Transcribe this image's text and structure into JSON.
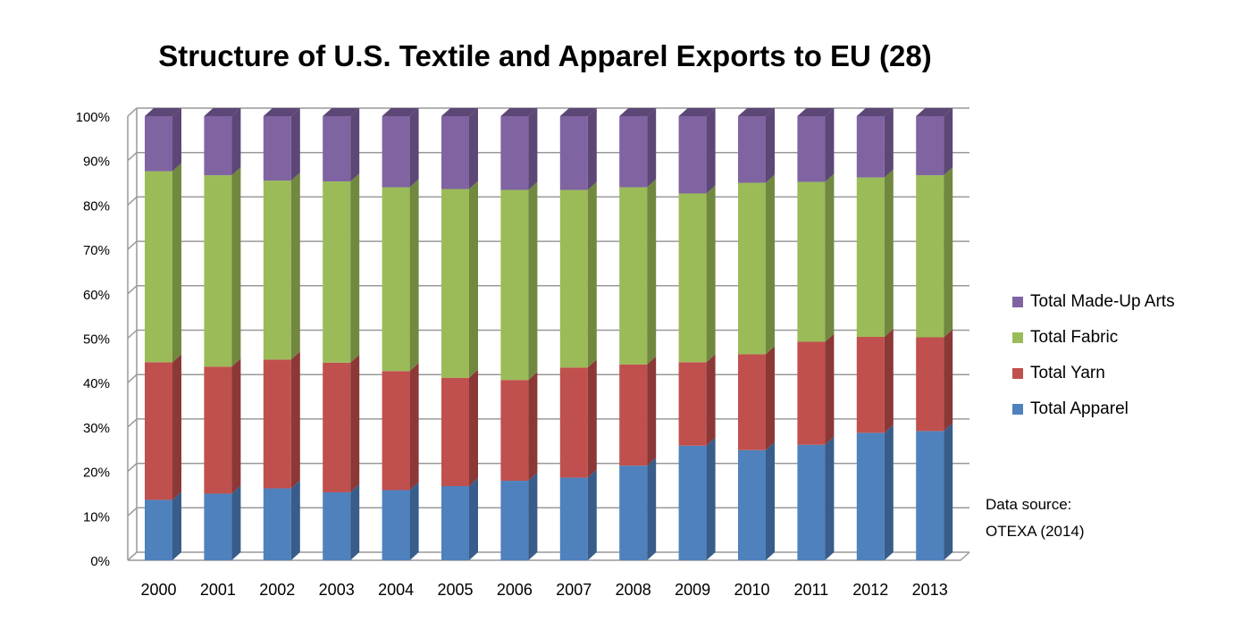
{
  "chart_data": {
    "type": "bar",
    "stacked": "percent",
    "title": "Structure of U.S. Textile and Apparel Exports to EU (28)",
    "xlabel": "",
    "ylabel": "",
    "ylim": [
      0,
      100
    ],
    "y_ticks": [
      "0%",
      "10%",
      "20%",
      "30%",
      "40%",
      "50%",
      "60%",
      "70%",
      "80%",
      "90%",
      "100%"
    ],
    "categories": [
      "2000",
      "2001",
      "2002",
      "2003",
      "2004",
      "2005",
      "2006",
      "2007",
      "2008",
      "2009",
      "2010",
      "2011",
      "2012",
      "2013"
    ],
    "series": [
      {
        "name": "Total Apparel",
        "color": "#4F81BD",
        "side": "#385D8A",
        "values": [
          13.6,
          15.0,
          16.2,
          15.3,
          15.8,
          16.7,
          17.9,
          18.6,
          21.3,
          25.8,
          24.8,
          26.0,
          28.7,
          29.1
        ]
      },
      {
        "name": "Total Yarn",
        "color": "#C0504D",
        "side": "#8C3836",
        "values": [
          31.0,
          28.6,
          29.0,
          29.2,
          26.8,
          24.4,
          22.7,
          24.8,
          22.8,
          18.8,
          21.6,
          23.2,
          21.6,
          21.1
        ]
      },
      {
        "name": "Total Fabric",
        "color": "#9BBB59",
        "side": "#71893F",
        "values": [
          43.0,
          43.1,
          40.3,
          40.8,
          41.4,
          42.5,
          42.8,
          40.0,
          39.9,
          38.0,
          38.6,
          36.0,
          35.9,
          36.5
        ]
      },
      {
        "name": "Total Made-Up Arts",
        "color": "#8064A2",
        "side": "#5C4776",
        "values": [
          12.4,
          13.3,
          14.5,
          14.7,
          16.0,
          16.4,
          16.6,
          16.6,
          16.0,
          17.4,
          15.0,
          14.8,
          13.8,
          13.3
        ]
      }
    ],
    "legend": "right",
    "grid": true
  },
  "annotation": {
    "line1": "Data source:",
    "line2": "OTEXA (2014)"
  }
}
